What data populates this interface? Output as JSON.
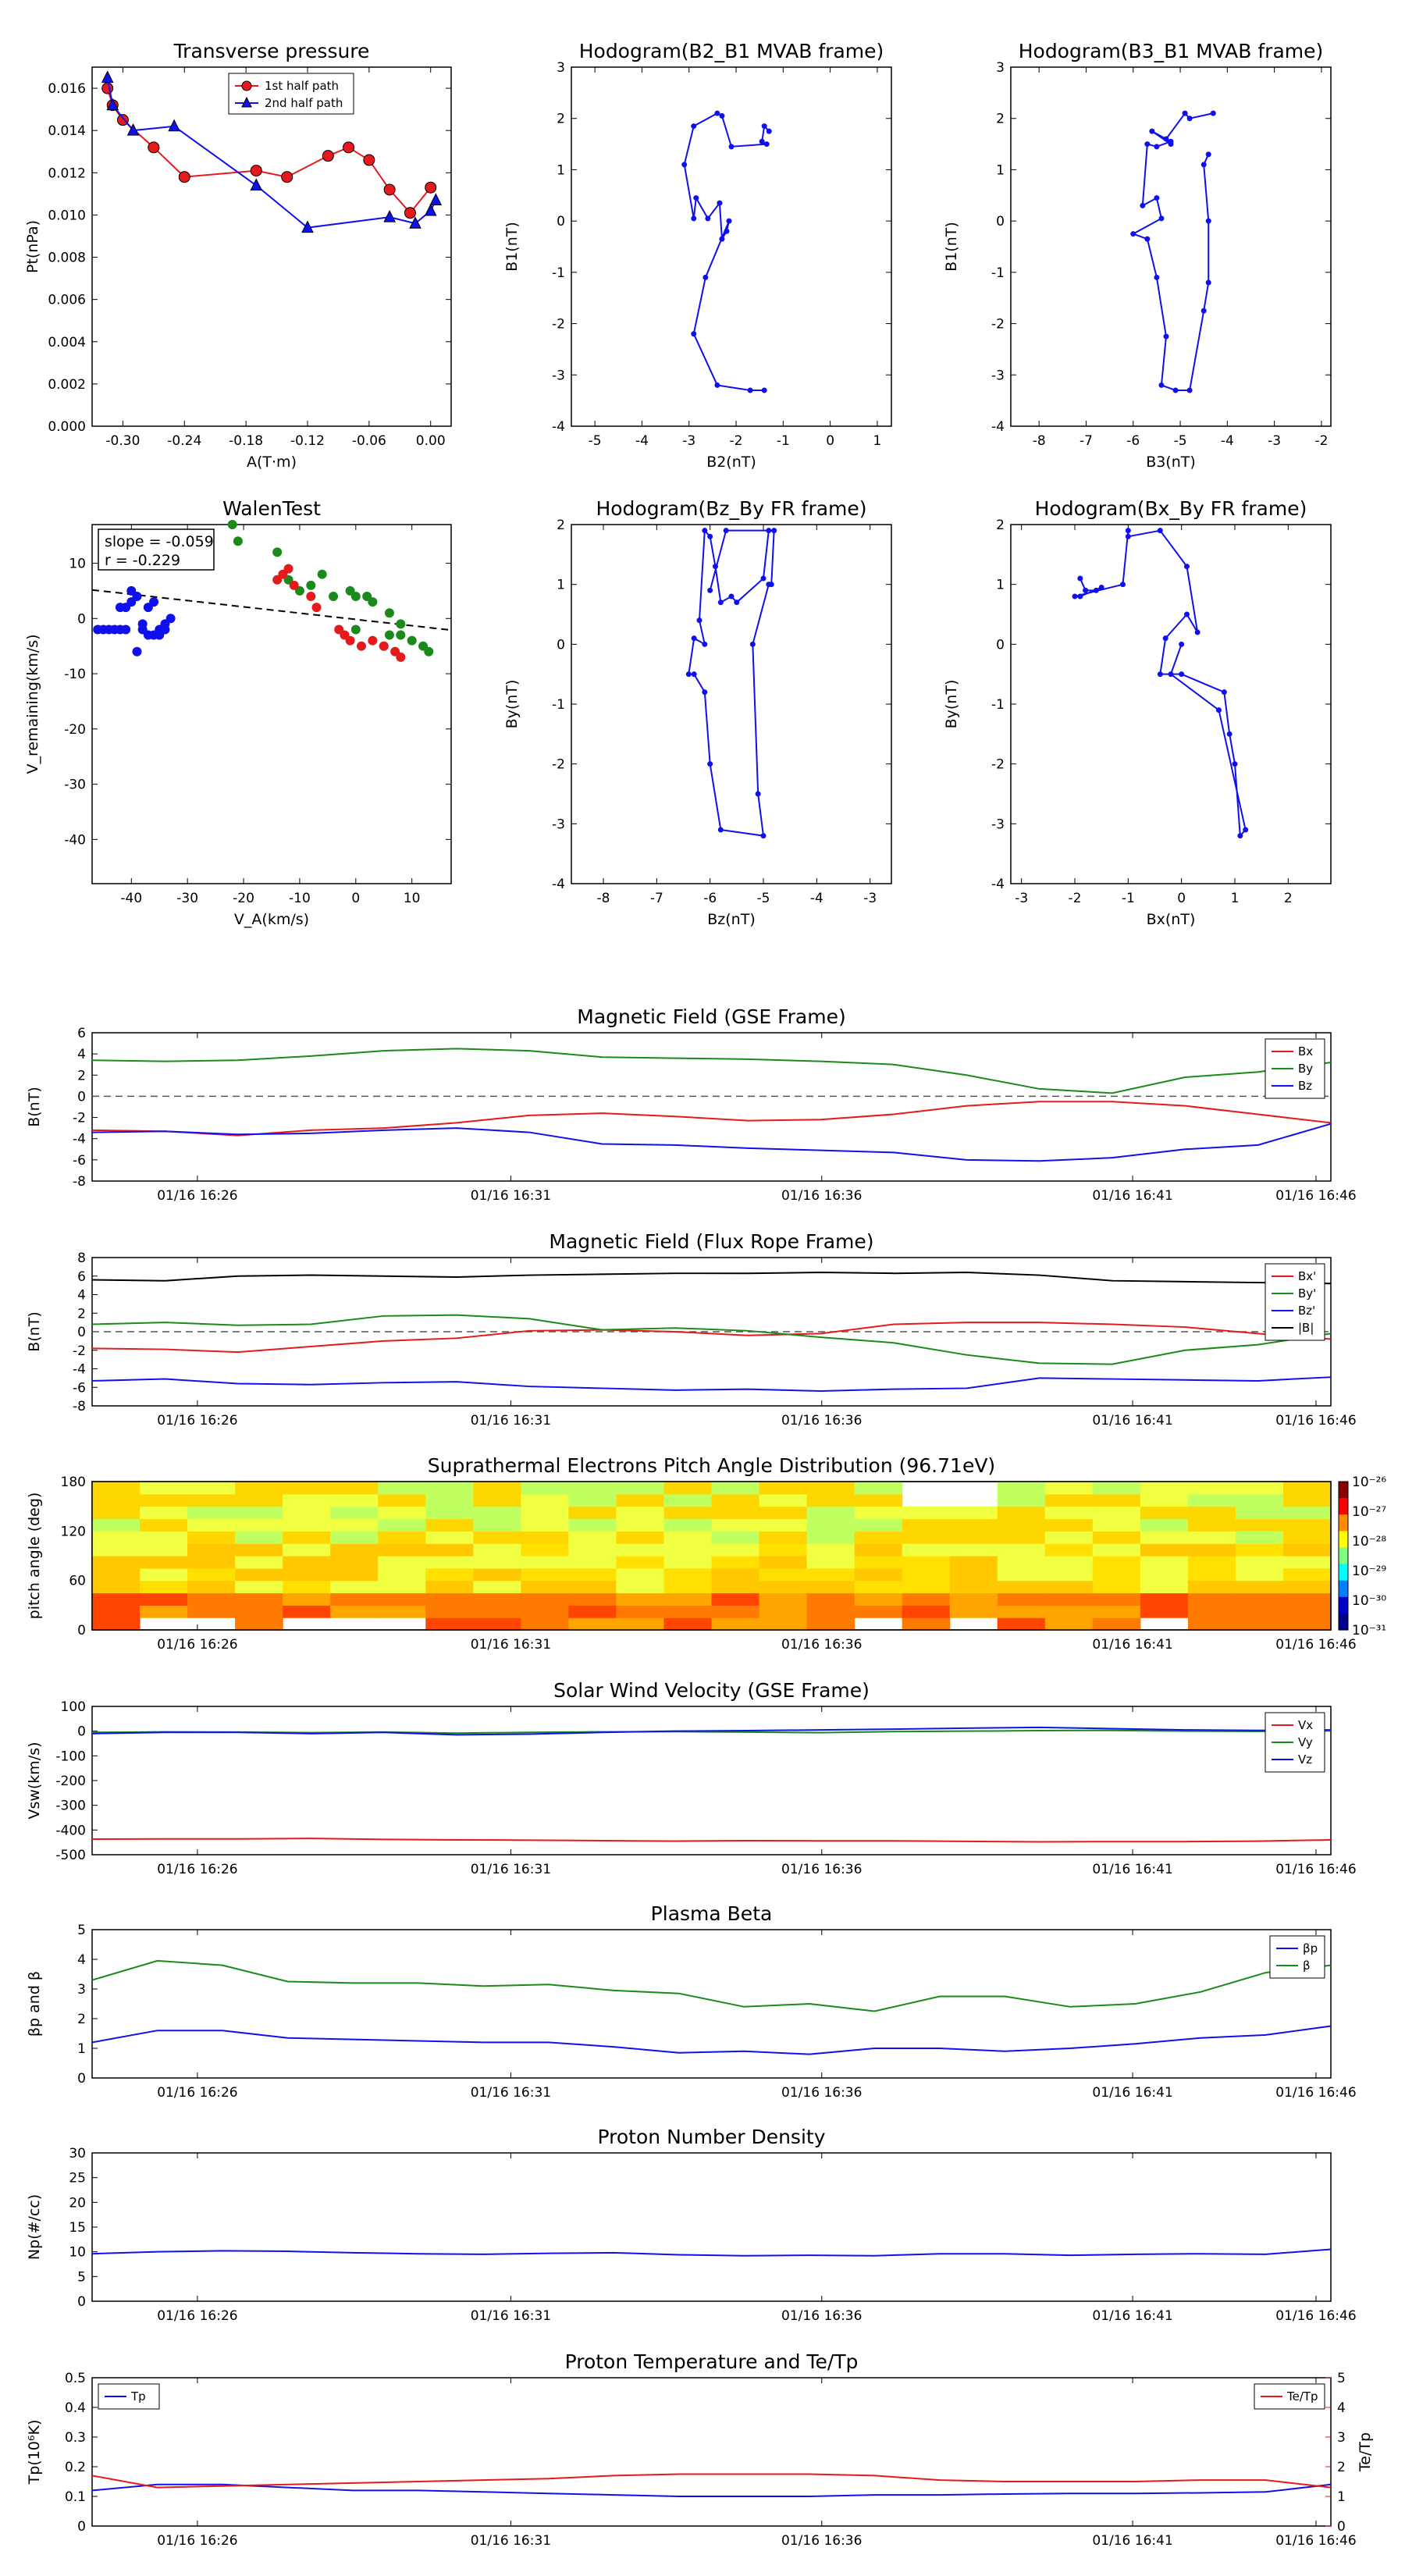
{
  "colors": {
    "red": "#e41a1c",
    "green": "#1a8a1a",
    "blue": "#1010ee",
    "black": "#000000"
  },
  "chart_data": [
    {
      "type": "scatter",
      "title": "Transverse pressure",
      "xlabel": "A(T·m)",
      "ylabel": "Pt(nPa)",
      "xlim": [
        -0.33,
        0.02
      ],
      "ylim": [
        0,
        0.017
      ],
      "xticks": [
        -0.3,
        -0.24,
        -0.18,
        -0.12,
        -0.06,
        0.0
      ],
      "xtick_labels": [
        "-0.30",
        "-0.24",
        "-0.18",
        "-0.12",
        "-0.06",
        "0.00"
      ],
      "yticks": [
        0,
        0.002,
        0.004,
        0.006,
        0.008,
        0.01,
        0.012,
        0.014,
        0.016
      ],
      "ytick_labels": [
        "0.000",
        "0.002",
        "0.004",
        "0.006",
        "0.008",
        "0.010",
        "0.012",
        "0.014",
        "0.016"
      ],
      "series": [
        {
          "name": "1st half path",
          "color": "red",
          "marker": "circle",
          "x": [
            0.0,
            -0.02,
            -0.04,
            -0.06,
            -0.08,
            -0.1,
            -0.14,
            -0.17,
            -0.24,
            -0.27,
            -0.3,
            -0.31,
            -0.315
          ],
          "y": [
            0.0113,
            0.0101,
            0.0112,
            0.0126,
            0.0132,
            0.0128,
            0.0118,
            0.0121,
            0.0118,
            0.0132,
            0.0145,
            0.0152,
            0.016
          ]
        },
        {
          "name": "2nd half path",
          "color": "blue",
          "marker": "triangle",
          "x": [
            -0.315,
            -0.31,
            -0.29,
            -0.25,
            -0.17,
            -0.12,
            -0.04,
            -0.015,
            0.0,
            0.005
          ],
          "y": [
            0.0165,
            0.0152,
            0.014,
            0.0142,
            0.0114,
            0.0094,
            0.0099,
            0.0096,
            0.0102,
            0.0107
          ]
        }
      ],
      "legend": "top-center"
    },
    {
      "type": "line",
      "title": "Hodogram(B2_B1 MVAB frame)",
      "xlabel": "B2(nT)",
      "ylabel": "B1(nT)",
      "xlim": [
        -5.5,
        1.3
      ],
      "ylim": [
        -4,
        3
      ],
      "xticks": [
        -5,
        -4,
        -3,
        -2,
        -1,
        0,
        1
      ],
      "yticks": [
        -4,
        -3,
        -2,
        -1,
        0,
        1,
        2,
        3
      ],
      "x": [
        -1.3,
        -1.4,
        -1.45,
        -1.35,
        -2.1,
        -2.3,
        -2.4,
        -2.9,
        -3.1,
        -2.9,
        -2.85,
        -2.6,
        -2.35,
        -2.3,
        -2.2,
        -2.15,
        -2.65,
        -2.9,
        -2.4,
        -1.7,
        -1.4
      ],
      "y": [
        1.75,
        1.85,
        1.55,
        1.5,
        1.45,
        2.05,
        2.1,
        1.85,
        1.1,
        0.05,
        0.45,
        0.05,
        0.35,
        -0.35,
        -0.2,
        0.0,
        -1.1,
        -2.2,
        -3.2,
        -3.3,
        -3.3
      ]
    },
    {
      "type": "line",
      "title": "Hodogram(B3_B1 MVAB frame)",
      "xlabel": "B3(nT)",
      "ylabel": "B1(nT)",
      "xlim": [
        -8.6,
        -1.8
      ],
      "ylim": [
        -4,
        3
      ],
      "xticks": [
        -8,
        -7,
        -6,
        -5,
        -4,
        -3,
        -2
      ],
      "yticks": [
        -4,
        -3,
        -2,
        -1,
        0,
        1,
        2,
        3
      ],
      "x": [
        -4.3,
        -4.8,
        -4.9,
        -5.3,
        -5.2,
        -5.6,
        -5.2,
        -5.5,
        -5.7,
        -5.8,
        -5.5,
        -5.4,
        -6.0,
        -5.7,
        -5.5,
        -5.3,
        -5.4,
        -5.1,
        -4.8,
        -4.5,
        -4.4,
        -4.4,
        -4.5,
        -4.4
      ],
      "y": [
        2.1,
        2.0,
        2.1,
        1.6,
        1.5,
        1.75,
        1.55,
        1.45,
        1.5,
        0.3,
        0.45,
        0.05,
        -0.25,
        -0.35,
        -1.1,
        -2.25,
        -3.2,
        -3.3,
        -3.3,
        -1.75,
        -1.2,
        0.0,
        1.1,
        1.3
      ]
    },
    {
      "type": "scatter",
      "title": "WalenTest",
      "xlabel": "V_A(km/s)",
      "ylabel": "V_remaining(km/s)",
      "xlim": [
        -47,
        17
      ],
      "ylim": [
        -48,
        17
      ],
      "xticks": [
        -40,
        -30,
        -20,
        -10,
        0,
        10
      ],
      "yticks": [
        -40,
        -30,
        -20,
        -10,
        0,
        10
      ],
      "annotation": [
        "slope = -0.059",
        "r = -0.229"
      ],
      "fit": {
        "slope": -0.059,
        "intercept": -0.1
      },
      "series": [
        {
          "color": "blue",
          "x": [
            -46,
            -45,
            -44,
            -43,
            -42,
            -41,
            -42,
            -41,
            -39,
            -40,
            -38,
            -37,
            -36,
            -35,
            -34,
            -39,
            -37,
            -36,
            -38,
            -33,
            -35,
            -34,
            -40
          ],
          "y": [
            -2,
            -2,
            -2,
            -2,
            2,
            2,
            -2,
            -2,
            4,
            3,
            -1,
            2,
            3,
            -2,
            -2,
            -6,
            -3,
            -3,
            -2,
            0,
            -3,
            -1,
            5
          ]
        },
        {
          "color": "green",
          "x": [
            -22,
            -21,
            -14,
            -12,
            -10,
            -8,
            -6,
            -4,
            0,
            2,
            3,
            6,
            8,
            12,
            13,
            10,
            5,
            -1,
            8,
            6,
            0
          ],
          "y": [
            17,
            14,
            12,
            7,
            5,
            6,
            8,
            4,
            4,
            4,
            3,
            -3,
            -3,
            -5,
            -6,
            -4,
            -5,
            5,
            -1,
            1,
            -2
          ]
        },
        {
          "color": "red",
          "x": [
            -13,
            -12,
            -11,
            -8,
            -7,
            -3,
            -1,
            1,
            3,
            5,
            7,
            8,
            -14,
            -2
          ],
          "y": [
            8,
            9,
            6,
            4,
            2,
            -2,
            -4,
            -5,
            -4,
            -5,
            -6,
            -7,
            7,
            -3
          ]
        }
      ]
    },
    {
      "type": "line",
      "title": "Hodogram(Bz_By FR frame)",
      "xlabel": "Bz(nT)",
      "ylabel": "By(nT)",
      "xlim": [
        -8.6,
        -2.6
      ],
      "ylim": [
        -4,
        2
      ],
      "xticks": [
        -8,
        -7,
        -6,
        -5,
        -4,
        -3
      ],
      "yticks": [
        -4,
        -3,
        -2,
        -1,
        0,
        1,
        2
      ],
      "x": [
        -4.9,
        -5.0,
        -5.5,
        -5.6,
        -5.8,
        -5.9,
        -6.0,
        -6.1,
        -6.2,
        -6.1,
        -6.3,
        -6.4,
        -6.3,
        -6.1,
        -6.0,
        -5.8,
        -5.0,
        -5.1,
        -5.2,
        -4.9,
        -4.85,
        -4.8,
        -5.7,
        -6.0
      ],
      "y": [
        1.9,
        1.1,
        0.7,
        0.8,
        0.7,
        1.3,
        1.8,
        1.9,
        0.4,
        0.0,
        0.1,
        -0.5,
        -0.5,
        -0.8,
        -2.0,
        -3.1,
        -3.2,
        -2.5,
        0.0,
        1.0,
        1.0,
        1.9,
        1.9,
        0.9
      ]
    },
    {
      "type": "line",
      "title": "Hodogram(Bx_By FR frame)",
      "xlabel": "Bx(nT)",
      "ylabel": "By(nT)",
      "xlim": [
        -3.2,
        2.8
      ],
      "ylim": [
        -4,
        2
      ],
      "xticks": [
        -3,
        -2,
        -1,
        0,
        1,
        2
      ],
      "yticks": [
        -4,
        -3,
        -2,
        -1,
        0,
        1,
        2
      ],
      "x": [
        -1.8,
        -1.9,
        -1.8,
        -1.6,
        -1.5,
        -1.9,
        -2.0,
        -1.1,
        -1.0,
        -1.0,
        -0.4,
        0.1,
        0.3,
        0.1,
        -0.3,
        -0.4,
        0.0,
        0.8,
        0.9,
        1.0,
        1.1,
        1.2,
        0.7,
        -0.2,
        0.0
      ],
      "y": [
        0.9,
        1.1,
        0.9,
        0.9,
        0.95,
        0.8,
        0.8,
        1.0,
        1.9,
        1.8,
        1.9,
        1.3,
        0.2,
        0.5,
        0.1,
        -0.5,
        -0.5,
        -0.8,
        -1.5,
        -2.0,
        -3.2,
        -3.1,
        -1.1,
        -0.5,
        0.0
      ]
    },
    {
      "type": "line",
      "title": "Magnetic Field (GSE Frame)",
      "ylabel": "B(nT)",
      "ylim": [
        -8,
        6
      ],
      "yticks": [
        -8,
        -6,
        -4,
        -2,
        0,
        2,
        4,
        6
      ],
      "xtick_labels": [
        "01/16 16:26",
        "01/16 16:31",
        "01/16 16:36",
        "01/16 16:41",
        "01/16 16:46"
      ],
      "series": [
        {
          "name": "Bx",
          "color": "red",
          "values": [
            -3.2,
            -3.3,
            -3.7,
            -3.2,
            -3.0,
            -2.5,
            -1.8,
            -1.6,
            -1.9,
            -2.3,
            -2.2,
            -1.7,
            -0.9,
            -0.5,
            -0.5,
            -0.9,
            -1.7,
            -2.5
          ]
        },
        {
          "name": "By",
          "color": "green",
          "values": [
            3.4,
            3.3,
            3.4,
            3.8,
            4.3,
            4.5,
            4.3,
            3.7,
            3.6,
            3.5,
            3.3,
            3.0,
            2.0,
            0.7,
            0.3,
            1.8,
            2.3,
            3.2
          ]
        },
        {
          "name": "Bz",
          "color": "blue",
          "values": [
            -3.4,
            -3.3,
            -3.6,
            -3.5,
            -3.2,
            -3.0,
            -3.4,
            -4.5,
            -4.6,
            -4.9,
            -5.1,
            -5.3,
            -6.0,
            -6.1,
            -5.8,
            -5.0,
            -4.6,
            -2.6
          ]
        }
      ],
      "legend": "top-right",
      "zero_line": true
    },
    {
      "type": "line",
      "title": "Magnetic Field (Flux Rope Frame)",
      "ylabel": "B(nT)",
      "ylim": [
        -8,
        8
      ],
      "yticks": [
        -8,
        -6,
        -4,
        -2,
        0,
        2,
        4,
        6,
        8
      ],
      "xtick_labels": [
        "01/16 16:26",
        "01/16 16:31",
        "01/16 16:36",
        "01/16 16:41",
        "01/16 16:46"
      ],
      "series": [
        {
          "name": "Bx'",
          "color": "red",
          "values": [
            -1.8,
            -1.9,
            -2.2,
            -1.6,
            -1.0,
            -0.7,
            0.1,
            0.2,
            0.0,
            -0.4,
            -0.2,
            0.8,
            1.0,
            1.0,
            0.8,
            0.5,
            -0.2,
            -0.8
          ]
        },
        {
          "name": "By'",
          "color": "green",
          "values": [
            0.8,
            1.0,
            0.7,
            0.8,
            1.7,
            1.8,
            1.4,
            0.2,
            0.4,
            0.1,
            -0.6,
            -1.2,
            -2.5,
            -3.4,
            -3.5,
            -2.0,
            -1.4,
            -0.2
          ]
        },
        {
          "name": "Bz'",
          "color": "blue",
          "values": [
            -5.3,
            -5.1,
            -5.6,
            -5.7,
            -5.5,
            -5.4,
            -5.9,
            -6.1,
            -6.3,
            -6.2,
            -6.4,
            -6.2,
            -6.1,
            -5.0,
            -5.1,
            -5.2,
            -5.3,
            -4.9
          ]
        },
        {
          "name": "|B|",
          "color": "black",
          "values": [
            5.6,
            5.5,
            6.0,
            6.1,
            6.0,
            5.9,
            6.1,
            6.2,
            6.3,
            6.3,
            6.4,
            6.3,
            6.4,
            6.1,
            5.5,
            5.4,
            5.3,
            5.2
          ]
        }
      ],
      "legend": "top-right",
      "zero_line": true
    },
    {
      "type": "heatmap",
      "title": "Suprathermal Electrons Pitch Angle Distribution (96.71eV)",
      "ylabel": "pitch angle (deg)",
      "ylim": [
        0,
        180
      ],
      "yticks": [
        0,
        60,
        120,
        180
      ],
      "xtick_labels": [
        "01/16 16:26",
        "01/16 16:31",
        "01/16 16:36",
        "01/16 16:41",
        "01/16 16:46"
      ],
      "colorbar": {
        "ticks": [
          "10⁻²⁶",
          "10⁻²⁷",
          "10⁻²⁸",
          "10⁻²⁹",
          "10⁻³⁰",
          "10⁻³¹"
        ],
        "range": [
          -31,
          -26
        ]
      },
      "columns": 26,
      "rows": 12
    },
    {
      "type": "line",
      "title": "Solar Wind Velocity (GSE Frame)",
      "ylabel": "Vsw(km/s)",
      "ylim": [
        -500,
        100
      ],
      "yticks": [
        -500,
        -400,
        -300,
        -200,
        -100,
        0,
        100
      ],
      "xtick_labels": [
        "01/16 16:26",
        "01/16 16:31",
        "01/16 16:36",
        "01/16 16:41",
        "01/16 16:46"
      ],
      "series": [
        {
          "name": "Vx",
          "color": "red",
          "values": [
            -437,
            -436,
            -436,
            -434,
            -438,
            -440,
            -441,
            -443,
            -445,
            -443,
            -444,
            -444,
            -446,
            -448,
            -447,
            -447,
            -445,
            -440
          ]
        },
        {
          "name": "Vy",
          "color": "green",
          "values": [
            -5,
            -3,
            -4,
            -6,
            -4,
            -8,
            -5,
            -3,
            -2,
            -4,
            -6,
            -2,
            0,
            2,
            3,
            0,
            -1,
            1
          ]
        },
        {
          "name": "Vz",
          "color": "blue",
          "values": [
            -10,
            -5,
            -5,
            -10,
            -5,
            -15,
            -12,
            -5,
            0,
            2,
            5,
            8,
            12,
            15,
            10,
            5,
            3,
            5
          ]
        }
      ],
      "legend": "top-right"
    },
    {
      "type": "line",
      "title": "Plasma Beta",
      "ylabel": "βp and β",
      "ylim": [
        0,
        5
      ],
      "yticks": [
        0,
        1,
        2,
        3,
        4,
        5
      ],
      "xtick_labels": [
        "01/16 16:26",
        "01/16 16:31",
        "01/16 16:36",
        "01/16 16:41",
        "01/16 16:46"
      ],
      "series": [
        {
          "name": "βp",
          "color": "blue",
          "values": [
            1.2,
            1.6,
            1.6,
            1.35,
            1.3,
            1.25,
            1.2,
            1.2,
            1.05,
            0.85,
            0.9,
            0.8,
            1.0,
            1.0,
            0.9,
            1.0,
            1.15,
            1.35,
            1.45,
            1.75
          ]
        },
        {
          "name": "β",
          "color": "green",
          "values": [
            3.3,
            3.95,
            3.8,
            3.25,
            3.2,
            3.2,
            3.1,
            3.15,
            2.95,
            2.85,
            2.4,
            2.5,
            2.25,
            2.75,
            2.75,
            2.4,
            2.5,
            2.9,
            3.55,
            3.8
          ]
        }
      ],
      "legend": "top-right"
    },
    {
      "type": "line",
      "title": "Proton Number Density",
      "ylabel": "Np(#/cc)",
      "ylim": [
        0,
        30
      ],
      "yticks": [
        0,
        5,
        10,
        15,
        20,
        25,
        30
      ],
      "xtick_labels": [
        "01/16 16:26",
        "01/16 16:31",
        "01/16 16:36",
        "01/16 16:41",
        "01/16 16:46"
      ],
      "series": [
        {
          "name": "Np",
          "color": "blue",
          "values": [
            9.6,
            10.0,
            10.2,
            10.1,
            9.8,
            9.6,
            9.5,
            9.7,
            9.8,
            9.4,
            9.2,
            9.3,
            9.2,
            9.6,
            9.6,
            9.3,
            9.5,
            9.6,
            9.5,
            10.5
          ]
        }
      ]
    },
    {
      "type": "line",
      "title": "Proton Temperature and Te/Tp",
      "ylabel": "Tp(10⁶K)",
      "ylabel_right": "Te/Tp",
      "ylim": [
        0,
        0.5
      ],
      "yticks": [
        0,
        0.1,
        0.2,
        0.3,
        0.4,
        0.5
      ],
      "ylim_right": [
        0,
        5
      ],
      "yticks_right": [
        0,
        1,
        2,
        3,
        4,
        5
      ],
      "xtick_labels": [
        "01/16 16:26",
        "01/16 16:31",
        "01/16 16:36",
        "01/16 16:41",
        "01/16 16:46"
      ],
      "series": [
        {
          "name": "Tp",
          "color": "blue",
          "axis": "left",
          "values": [
            0.12,
            0.14,
            0.14,
            0.13,
            0.12,
            0.12,
            0.115,
            0.11,
            0.105,
            0.1,
            0.1,
            0.1,
            0.105,
            0.105,
            0.108,
            0.11,
            0.11,
            0.112,
            0.115,
            0.14
          ]
        },
        {
          "name": "Te/Tp",
          "color": "red",
          "axis": "right",
          "values": [
            1.7,
            1.3,
            1.35,
            1.4,
            1.45,
            1.5,
            1.55,
            1.6,
            1.7,
            1.75,
            1.75,
            1.75,
            1.7,
            1.55,
            1.5,
            1.5,
            1.5,
            1.55,
            1.55,
            1.3
          ]
        }
      ],
      "legend": "top-left"
    }
  ]
}
